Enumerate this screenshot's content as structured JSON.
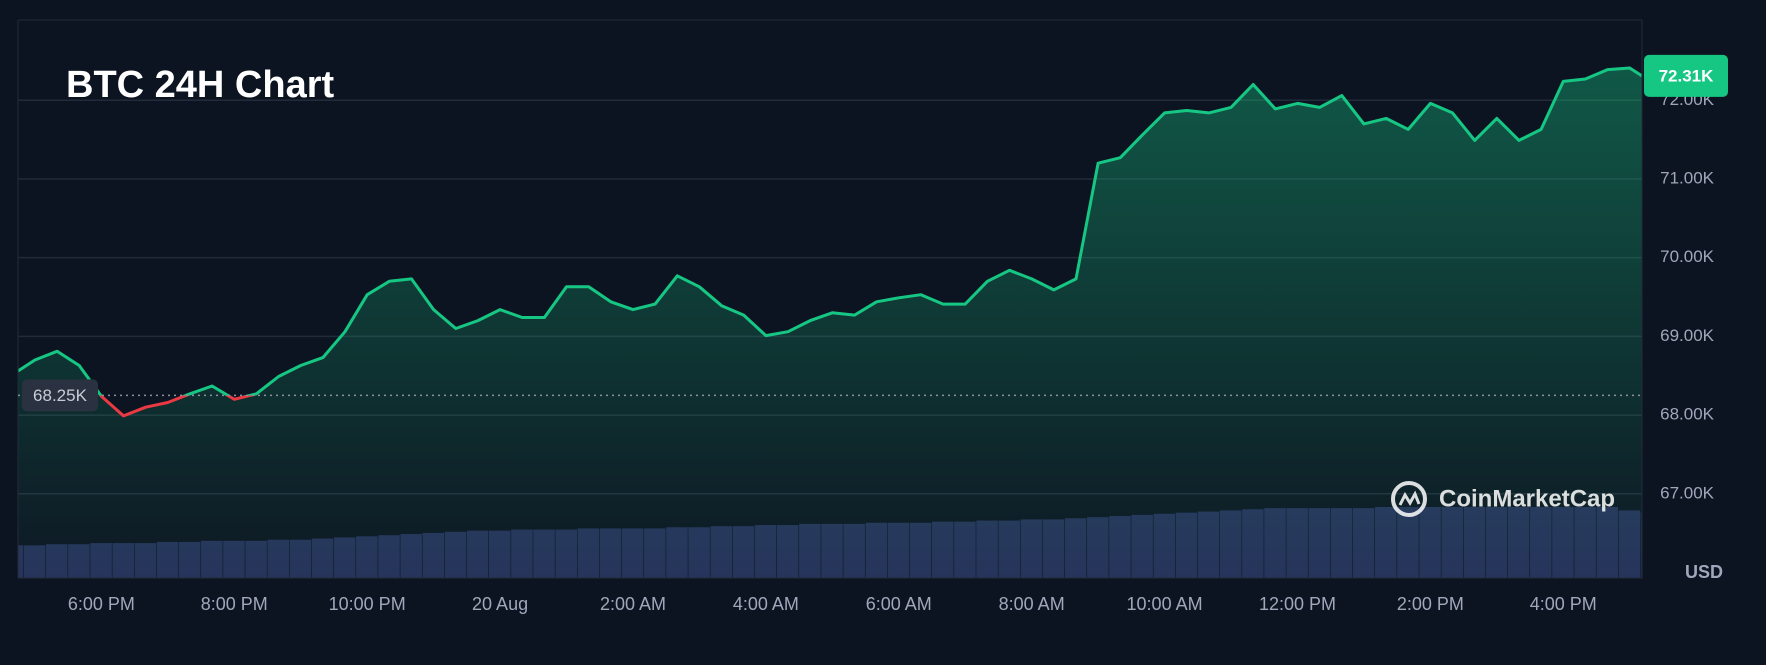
{
  "chart_data": {
    "type": "line",
    "title": "BTC 24H Chart",
    "currency_label": "USD",
    "watermark": "CoinMarketCap",
    "categories": [
      null,
      null,
      null,
      null,
      "6:00 PM",
      null,
      null,
      null,
      null,
      null,
      "8:00 PM",
      null,
      null,
      null,
      null,
      null,
      "10:00 PM",
      null,
      null,
      null,
      null,
      null,
      "20 Aug",
      null,
      null,
      null,
      null,
      null,
      "2:00 AM",
      null,
      null,
      null,
      null,
      null,
      "4:00 AM",
      null,
      null,
      null,
      null,
      null,
      "6:00 AM",
      null,
      null,
      null,
      null,
      null,
      "8:00 AM",
      null,
      null,
      null,
      null,
      null,
      "10:00 AM",
      null,
      null,
      null,
      null,
      null,
      "12:00 PM",
      null,
      null,
      null,
      null,
      null,
      "2:00 PM",
      null,
      null,
      null,
      null,
      null,
      "4:00 PM",
      null,
      null,
      null,
      null
    ],
    "series": [
      {
        "name": "BTC",
        "color": "#16c784",
        "below_color": "#ea3943",
        "values": [
          68560,
          68700,
          68810,
          68630,
          68240,
          67990,
          68100,
          68160,
          68270,
          68370,
          68200,
          68270,
          68490,
          68630,
          68730,
          69060,
          69530,
          69700,
          69730,
          69340,
          69100,
          69200,
          69340,
          69240,
          69240,
          69630,
          69630,
          69440,
          69340,
          69410,
          69770,
          69630,
          69390,
          69270,
          69010,
          69060,
          69200,
          69300,
          69270,
          69440,
          69490,
          69530,
          69410,
          69410,
          69700,
          69840,
          69730,
          69590,
          69730,
          71200,
          71270,
          71560,
          71840,
          71870,
          71840,
          71910,
          72200,
          71890,
          71960,
          71910,
          72060,
          71700,
          71770,
          71630,
          71960,
          71840,
          71490,
          71770,
          71490,
          71630,
          72240,
          72270,
          72390,
          72410,
          72310
        ]
      }
    ],
    "volume": {
      "color": "#27315a",
      "values": [
        29,
        29,
        30,
        30,
        31,
        31,
        31,
        32,
        32,
        33,
        33,
        33,
        34,
        34,
        35,
        36,
        37,
        38,
        39,
        40,
        41,
        42,
        42,
        43,
        43,
        43,
        44,
        44,
        44,
        44,
        45,
        45,
        46,
        46,
        47,
        47,
        48,
        48,
        48,
        49,
        49,
        49,
        50,
        50,
        51,
        51,
        52,
        52,
        53,
        54,
        55,
        56,
        57,
        58,
        59,
        60,
        61,
        62,
        62,
        62,
        62,
        62,
        63,
        63,
        63,
        63,
        63,
        63,
        63,
        63,
        63,
        63,
        63,
        60,
        58
      ]
    },
    "reference_line": {
      "value": 68250,
      "label": "68.25K"
    },
    "current_price": {
      "value": 72310,
      "label": "72.31K"
    },
    "ylim": [
      65930,
      73020
    ],
    "yticks": [
      {
        "value": 67000,
        "label": "67.00K"
      },
      {
        "value": 68000,
        "label": "68.00K"
      },
      {
        "value": 69000,
        "label": "69.00K"
      },
      {
        "value": 70000,
        "label": "70.00K"
      },
      {
        "value": 71000,
        "label": "71.00K"
      },
      {
        "value": 72000,
        "label": "72.00K"
      }
    ],
    "grid": true
  }
}
